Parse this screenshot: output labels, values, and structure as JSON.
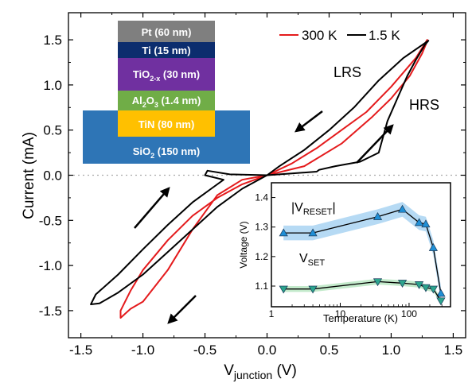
{
  "chart_data": [
    {
      "type": "line",
      "xlabel": "V",
      "xlabel_sub": "junction",
      "xlabel_unit": " (V)",
      "ylabel": "Current (mA)",
      "xlim": [
        -1.6,
        1.6
      ],
      "ylim": [
        -1.8,
        1.8
      ],
      "xticks": [
        "-1.5",
        "-1.0",
        "-0.5",
        "0.0",
        "0.5",
        "1.0",
        "1.5"
      ],
      "xtick_values": [
        -1.5,
        -1.0,
        -0.5,
        0.0,
        0.5,
        1.0,
        1.5
      ],
      "yticks": [
        "-1.5",
        "-1.0",
        "-0.5",
        "0.0",
        "0.5",
        "1.0",
        "1.5"
      ],
      "ytick_values": [
        -1.5,
        -1.0,
        -0.5,
        0.0,
        0.5,
        1.0,
        1.5
      ],
      "zero_line": "dotted",
      "legend": "top-right",
      "series": [
        {
          "name": "300 K",
          "color": "#e41a1c",
          "x": [
            0.0,
            0.3,
            0.6,
            0.85,
            1.0,
            1.15,
            1.25,
            1.28,
            1.29,
            1.2,
            1.0,
            0.8,
            0.6,
            0.4,
            0.2,
            0.0,
            -0.2,
            -0.4,
            -0.6,
            -0.8,
            -1.0,
            -1.1,
            -1.18,
            -1.18,
            -1.1,
            -1.0,
            -0.8,
            -0.6,
            -0.4,
            -0.2,
            0.0
          ],
          "y": [
            0.0,
            0.1,
            0.35,
            0.65,
            0.85,
            1.1,
            1.35,
            1.45,
            1.5,
            1.3,
            0.98,
            0.7,
            0.5,
            0.3,
            0.13,
            0.0,
            -0.1,
            -0.25,
            -0.45,
            -0.72,
            -1.05,
            -1.28,
            -1.5,
            -1.58,
            -1.48,
            -1.4,
            -1.05,
            -0.6,
            -0.22,
            -0.05,
            0.0
          ]
        },
        {
          "name": "1.5 K",
          "color": "#000000",
          "x": [
            0.0,
            0.2,
            0.4,
            0.42,
            0.55,
            0.75,
            0.9,
            0.97,
            1.05,
            1.13,
            1.2,
            1.27,
            1.3,
            1.1,
            0.9,
            0.7,
            0.5,
            0.3,
            0.1,
            0.0,
            -0.2,
            -0.4,
            -0.6,
            -0.8,
            -1.0,
            -1.2,
            -1.35,
            -1.42,
            -1.38,
            -1.2,
            -1.0,
            -0.8,
            -0.6,
            -0.45,
            -0.35,
            -0.5,
            -0.48,
            -0.3,
            0.0
          ],
          "y": [
            0.0,
            0.02,
            0.04,
            0.06,
            0.1,
            0.15,
            0.25,
            0.6,
            0.85,
            1.1,
            1.28,
            1.44,
            1.49,
            1.3,
            1.05,
            0.75,
            0.5,
            0.28,
            0.1,
            0.0,
            -0.15,
            -0.35,
            -0.6,
            -0.85,
            -1.1,
            -1.3,
            -1.42,
            -1.43,
            -1.32,
            -1.1,
            -0.82,
            -0.55,
            -0.3,
            -0.15,
            -0.05,
            0.0,
            0.05,
            0.01,
            0.0
          ]
        }
      ],
      "annotations": [
        "LRS",
        "HRS"
      ],
      "stack_layers": [
        {
          "label": "Pt (60 nm)",
          "color": "#7f7f7f"
        },
        {
          "label": "Ti (15 nm)",
          "color": "#0c2d6e"
        },
        {
          "label": "TiO2-x (30 nm)",
          "label_main": "TiO",
          "label_sub": "2-x",
          "label_rest": " (30 nm)",
          "color": "#7030a0"
        },
        {
          "label": "Al2O3 (1.4 nm)",
          "label_main": "Al",
          "label_sub": "2",
          "label_mid": "O",
          "label_sub2": "3",
          "label_rest": " (1.4 nm)",
          "color": "#70ad47"
        },
        {
          "label": "TiN (80 nm)",
          "color": "#ffc000"
        },
        {
          "label": "SiO2 (150 nm)",
          "label_main": "SiO",
          "label_sub": "2",
          "label_rest": " (150 nm)",
          "color": "#2e75b6"
        }
      ]
    },
    {
      "type": "scatter",
      "inset": true,
      "xlabel": "Temperature (K)",
      "ylabel": "Voltage (V)",
      "xscale": "log",
      "xlim": [
        1,
        400
      ],
      "ylim": [
        1.03,
        1.45
      ],
      "xticks": [
        "1",
        "10",
        "100"
      ],
      "xtick_values": [
        1,
        10,
        100
      ],
      "yticks": [
        "1.1",
        "1.2",
        "1.3",
        "1.4"
      ],
      "ytick_values": [
        1.1,
        1.2,
        1.3,
        1.4
      ],
      "series": [
        {
          "name": "|VRESET|",
          "label_main": "|V",
          "label_sub": "RESET",
          "label_end": "|",
          "marker": "triangle-up",
          "color": "#1f8fd6",
          "band_color": "#a9d4f2",
          "x": [
            1.5,
            4,
            35,
            80,
            140,
            175,
            225,
            290
          ],
          "y": [
            1.28,
            1.28,
            1.335,
            1.36,
            1.315,
            1.31,
            1.23,
            1.075
          ]
        },
        {
          "name": "VSET",
          "label_main": "V",
          "label_sub": "SET",
          "marker": "triangle-down",
          "color": "#2ca58d",
          "band_color": "#b9e6c2",
          "x": [
            1.5,
            4,
            35,
            80,
            140,
            175,
            225,
            290
          ],
          "y": [
            1.09,
            1.09,
            1.115,
            1.11,
            1.105,
            1.095,
            1.09,
            1.05
          ]
        }
      ]
    }
  ]
}
